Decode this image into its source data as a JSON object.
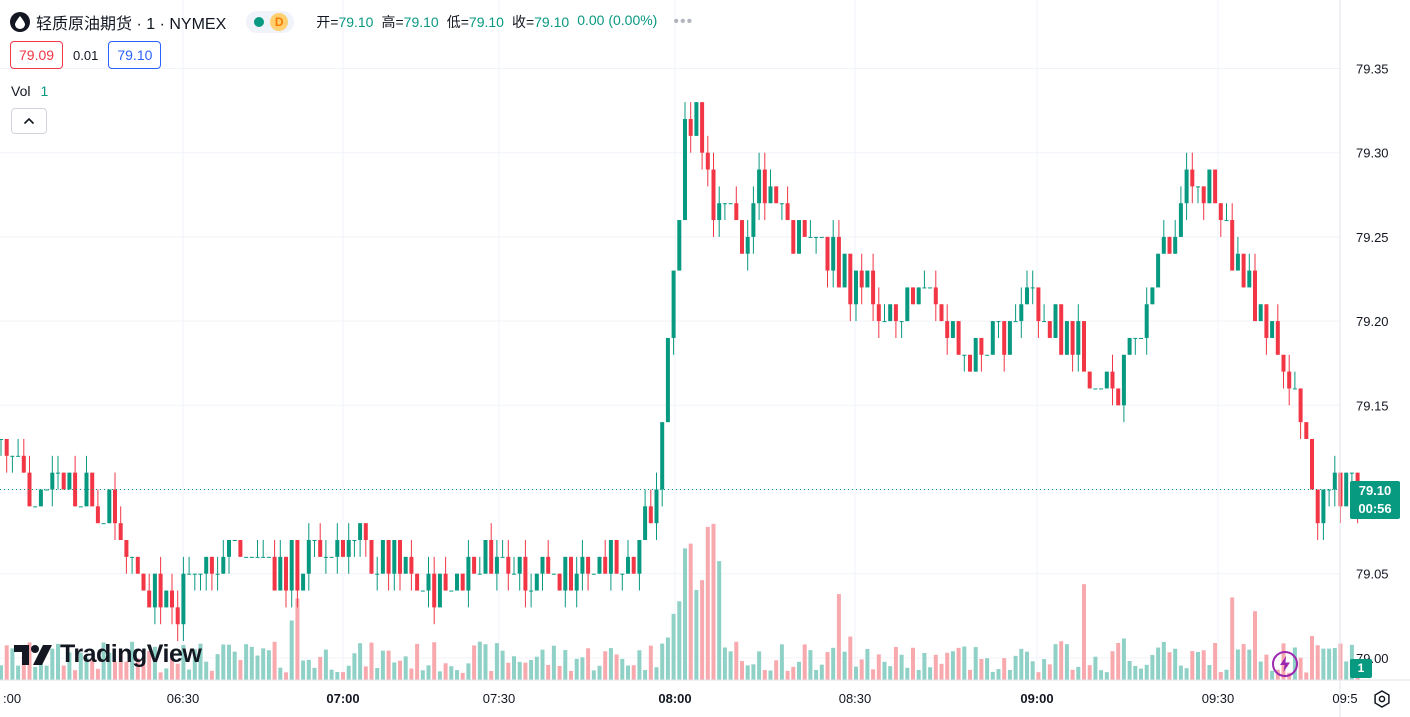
{
  "header": {
    "title": "轻质原油期货 · 1 · NYMEX",
    "delay_badge": "D",
    "ohlc": [
      {
        "label": "开=",
        "value": "79.10"
      },
      {
        "label": "高=",
        "value": "79.10"
      },
      {
        "label": "低=",
        "value": "79.10"
      },
      {
        "label": "收=",
        "value": "79.10"
      }
    ],
    "change": "0.00 (0.00%)"
  },
  "quote": {
    "bid": "79.09",
    "spread": "0.01",
    "ask": "79.10"
  },
  "volume_legend": {
    "label": "Vol",
    "value": "1"
  },
  "logo": {
    "text": "TradingView"
  },
  "price_tag": {
    "price": "79.10",
    "countdown": "00:56"
  },
  "volume_tag": "1",
  "colors": {
    "up": "#089981",
    "down": "#f23645",
    "up_vol": "#8fd1c6",
    "down_vol": "#f7a9ae",
    "flash": "#9c27b0"
  },
  "icons": [
    "oil-drop-icon",
    "chevron-up-icon",
    "flash-icon",
    "settings-icon"
  ],
  "chart_data": {
    "type": "candlestick",
    "interval": "1 minute",
    "ylim": [
      79.0,
      79.36
    ],
    "y_ticks": [
      "79.35",
      "79.30",
      "79.25",
      "79.20",
      "79.15",
      "79.10",
      "79.05",
      "79.00"
    ],
    "x_ticks": [
      ":00",
      "06:30",
      "07:00",
      "07:30",
      "08:00",
      "08:30",
      "09:00",
      "09:30",
      "09:5"
    ],
    "last_price": 79.1,
    "anchors": [
      [
        "06:00",
        79.13
      ],
      [
        "06:05",
        79.1
      ],
      [
        "06:10",
        79.11
      ],
      [
        "06:15",
        79.1
      ],
      [
        "06:20",
        79.08
      ],
      [
        "06:25",
        79.05
      ],
      [
        "06:30",
        79.03
      ],
      [
        "06:35",
        79.05
      ],
      [
        "06:40",
        79.07
      ],
      [
        "06:45",
        79.06
      ],
      [
        "06:50",
        79.05
      ],
      [
        "06:55",
        79.06
      ],
      [
        "07:00",
        79.07
      ],
      [
        "07:05",
        79.06
      ],
      [
        "07:10",
        79.05
      ],
      [
        "07:15",
        79.04
      ],
      [
        "07:20",
        79.05
      ],
      [
        "07:25",
        79.06
      ],
      [
        "07:30",
        79.06
      ],
      [
        "07:35",
        79.05
      ],
      [
        "07:40",
        79.05
      ],
      [
        "07:45",
        79.05
      ],
      [
        "07:50",
        79.06
      ],
      [
        "07:55",
        79.1
      ],
      [
        "07:57",
        79.2
      ],
      [
        "08:00",
        79.31
      ],
      [
        "08:02",
        79.33
      ],
      [
        "08:05",
        79.27
      ],
      [
        "08:10",
        79.25
      ],
      [
        "08:13",
        79.29
      ],
      [
        "08:16",
        79.27
      ],
      [
        "08:20",
        79.25
      ],
      [
        "08:25",
        79.24
      ],
      [
        "08:30",
        79.22
      ],
      [
        "08:35",
        79.21
      ],
      [
        "08:40",
        79.22
      ],
      [
        "08:45",
        79.2
      ],
      [
        "08:50",
        79.18
      ],
      [
        "08:55",
        79.19
      ],
      [
        "09:00",
        79.22
      ],
      [
        "09:05",
        79.2
      ],
      [
        "09:10",
        79.18
      ],
      [
        "09:15",
        79.16
      ],
      [
        "09:20",
        79.19
      ],
      [
        "09:25",
        79.25
      ],
      [
        "09:30",
        79.29
      ],
      [
        "09:35",
        79.25
      ],
      [
        "09:40",
        79.21
      ],
      [
        "09:45",
        79.18
      ],
      [
        "09:48",
        79.14
      ],
      [
        "09:50",
        79.09
      ],
      [
        "09:55",
        79.1
      ],
      [
        "09:58",
        79.1
      ]
    ]
  }
}
